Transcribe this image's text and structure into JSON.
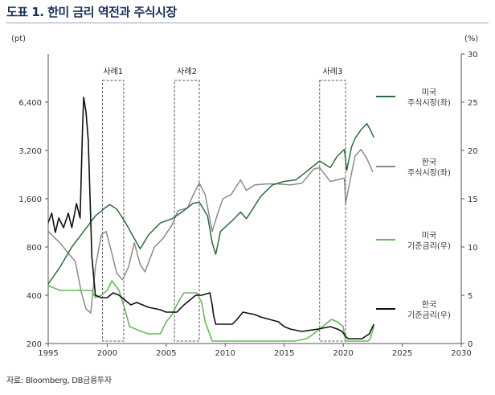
{
  "title": "도표 1. 한미 금리 역전과 주식시장",
  "source": "자료: Bloomberg, DB금융투자",
  "chart_data": {
    "type": "line",
    "left_axis": {
      "unit": "(pt)",
      "scale": "log",
      "ylim": [
        200,
        12800
      ],
      "ticks": [
        200,
        400,
        800,
        1600,
        3200,
        6400
      ],
      "tick_labels": [
        "200",
        "400",
        "800",
        "1,600",
        "3,200",
        "6,400"
      ]
    },
    "right_axis": {
      "unit": "(%)",
      "ylim": [
        0,
        30
      ],
      "ticks": [
        0,
        5,
        10,
        15,
        20,
        25,
        30
      ],
      "tick_labels": [
        "0",
        "5",
        "10",
        "15",
        "20",
        "25",
        "30"
      ]
    },
    "x_axis": {
      "xlim": [
        1995,
        2030
      ],
      "ticks": [
        1995,
        2000,
        2005,
        2010,
        2015,
        2020,
        2025,
        2030
      ],
      "tick_labels": [
        "1995",
        "2000",
        "2005",
        "2010",
        "2015",
        "2020",
        "2025",
        "2030"
      ]
    },
    "events": [
      {
        "label": "사례1",
        "start": 1999.6,
        "end": 2001.4
      },
      {
        "label": "사례2",
        "start": 2005.7,
        "end": 2007.8
      },
      {
        "label": "사례3",
        "start": 2018.0,
        "end": 2020.2
      }
    ],
    "series": [
      {
        "name": "미국\n주식시장(좌)",
        "axis": "left",
        "color": "#2e6b3c",
        "x": [
          1995.0,
          1996.0,
          1997.0,
          1998.0,
          1999.0,
          1999.8,
          2000.2,
          2000.8,
          2001.5,
          2002.5,
          2002.8,
          2003.5,
          2004.5,
          2005.5,
          2006.5,
          2007.3,
          2007.8,
          2008.5,
          2008.9,
          2009.2,
          2009.6,
          2010.5,
          2011.3,
          2011.8,
          2013.0,
          2014.0,
          2015.0,
          2016.0,
          2017.0,
          2018.0,
          2018.9,
          2019.5,
          2020.1,
          2020.3,
          2020.7,
          2021.0,
          2021.5,
          2022.0,
          2022.3,
          2022.6
        ],
        "y": [
          470,
          600,
          800,
          1000,
          1250,
          1400,
          1470,
          1380,
          1150,
          850,
          780,
          950,
          1130,
          1200,
          1350,
          1500,
          1520,
          1250,
          850,
          720,
          1000,
          1150,
          1320,
          1200,
          1650,
          1950,
          2050,
          2100,
          2400,
          2750,
          2500,
          2950,
          3250,
          2400,
          3350,
          3800,
          4300,
          4700,
          4300,
          3850
        ]
      },
      {
        "name": "한국\n주식시장(좌)",
        "axis": "left",
        "color": "#8c8c8c",
        "x": [
          1995.0,
          1995.5,
          1996.0,
          1996.7,
          1997.3,
          1997.8,
          1998.2,
          1998.6,
          1999.0,
          1999.5,
          1999.9,
          2000.3,
          2000.8,
          2001.3,
          2001.8,
          2002.3,
          2002.8,
          2003.2,
          2004.0,
          2004.7,
          2005.5,
          2006.0,
          2006.8,
          2007.3,
          2007.8,
          2008.3,
          2008.9,
          2009.3,
          2009.8,
          2010.5,
          2011.3,
          2011.8,
          2012.5,
          2013.5,
          2014.5,
          2015.5,
          2016.5,
          2017.5,
          2018.0,
          2018.9,
          2019.5,
          2020.1,
          2020.2,
          2020.7,
          2021.0,
          2021.5,
          2022.0,
          2022.5
        ],
        "y": [
          1000,
          920,
          850,
          730,
          650,
          420,
          330,
          310,
          600,
          950,
          1000,
          780,
          550,
          500,
          600,
          850,
          620,
          560,
          800,
          900,
          1100,
          1350,
          1400,
          1700,
          2000,
          1700,
          1000,
          1250,
          1600,
          1700,
          2100,
          1800,
          1950,
          1980,
          1980,
          1950,
          2000,
          2450,
          2500,
          2050,
          2100,
          2150,
          1500,
          2300,
          2950,
          3250,
          2850,
          2350
        ]
      },
      {
        "name": "미국\n기준금리(우)",
        "axis": "right",
        "color": "#6ab75e",
        "x": [
          1995.0,
          1995.5,
          1996.0,
          1998.7,
          1999.0,
          1999.5,
          2000.0,
          2000.4,
          2001.0,
          2001.5,
          2001.9,
          2002.9,
          2003.5,
          2004.5,
          2005.0,
          2005.5,
          2006.0,
          2006.5,
          2007.6,
          2008.0,
          2008.3,
          2008.9,
          2015.9,
          2016.9,
          2017.5,
          2018.0,
          2018.5,
          2019.0,
          2019.5,
          2020.0,
          2020.2,
          2022.1,
          2022.3,
          2022.4,
          2022.6
        ],
        "y": [
          6.0,
          5.75,
          5.5,
          5.5,
          4.75,
          5.0,
          5.5,
          6.5,
          5.5,
          3.5,
          1.75,
          1.25,
          1.0,
          1.0,
          2.25,
          3.0,
          4.25,
          5.25,
          5.25,
          4.25,
          2.25,
          0.25,
          0.25,
          0.5,
          1.0,
          1.5,
          2.0,
          2.5,
          2.25,
          1.75,
          0.25,
          0.25,
          0.5,
          1.0,
          1.75
        ]
      },
      {
        "name": "한국\n기준금리(우)",
        "axis": "right",
        "color": "#111111",
        "x": [
          1995.0,
          1995.3,
          1995.6,
          1995.9,
          1996.3,
          1996.7,
          1997.0,
          1997.4,
          1997.7,
          1997.9,
          1998.0,
          1998.2,
          1998.4,
          1998.7,
          1999.0,
          1999.5,
          2000.0,
          2000.5,
          2001.0,
          2001.5,
          2002.0,
          2002.5,
          2003.0,
          2003.5,
          2004.5,
          2005.0,
          2005.9,
          2006.5,
          2007.0,
          2007.5,
          2008.0,
          2008.7,
          2008.9,
          2009.0,
          2009.2,
          2010.6,
          2011.0,
          2011.5,
          2012.5,
          2013.0,
          2014.5,
          2015.0,
          2015.5,
          2016.5,
          2017.9,
          2018.9,
          2019.5,
          2019.9,
          2020.2,
          2020.4,
          2021.6,
          2021.9,
          2022.2,
          2022.4,
          2022.6
        ],
        "y": [
          12.5,
          13.5,
          11.5,
          13.0,
          12.0,
          13.5,
          12.0,
          14.5,
          13.0,
          22.0,
          25.5,
          24.0,
          21.0,
          9.0,
          5.0,
          4.75,
          4.75,
          5.25,
          5.0,
          4.5,
          4.0,
          4.25,
          4.0,
          3.75,
          3.5,
          3.25,
          3.25,
          4.0,
          4.5,
          5.0,
          5.0,
          5.25,
          4.0,
          3.0,
          2.0,
          2.0,
          2.5,
          3.25,
          3.0,
          2.75,
          2.25,
          1.75,
          1.5,
          1.25,
          1.5,
          1.75,
          1.5,
          1.25,
          0.75,
          0.5,
          0.5,
          0.75,
          1.0,
          1.5,
          2.0
        ]
      }
    ]
  }
}
